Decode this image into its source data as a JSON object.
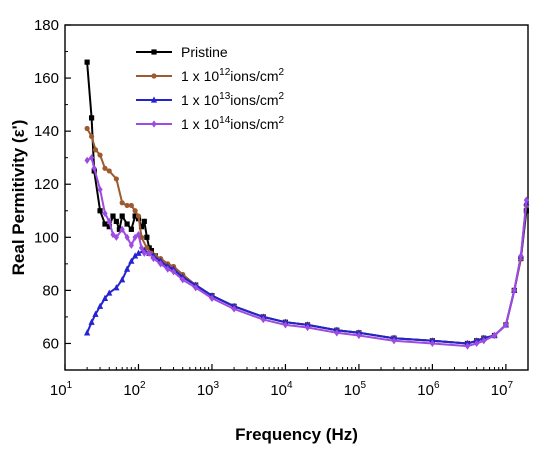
{
  "chart_data": {
    "type": "line",
    "xlabel": "Frequency (Hz)",
    "ylabel": "Real Permitivity (ε')",
    "x_scale": "log",
    "xlim": [
      10,
      20000000
    ],
    "ylim": [
      50,
      180
    ],
    "x_ticks": [
      {
        "value": 10,
        "mantissa": "10",
        "exp": "1"
      },
      {
        "value": 100,
        "mantissa": "10",
        "exp": "2"
      },
      {
        "value": 1000,
        "mantissa": "10",
        "exp": "3"
      },
      {
        "value": 10000,
        "mantissa": "10",
        "exp": "4"
      },
      {
        "value": 100000,
        "mantissa": "10",
        "exp": "5"
      },
      {
        "value": 1000000,
        "mantissa": "10",
        "exp": "6"
      },
      {
        "value": 10000000,
        "mantissa": "10",
        "exp": "7"
      }
    ],
    "y_ticks": [
      60,
      80,
      100,
      120,
      140,
      160,
      180
    ],
    "grid": false,
    "legend_position": "top-center",
    "series": [
      {
        "legend_parts": [
          "Pristine"
        ],
        "color": "#000000",
        "marker": "square",
        "points": [
          [
            20,
            166
          ],
          [
            23,
            145
          ],
          [
            25,
            125
          ],
          [
            30,
            110
          ],
          [
            35,
            105
          ],
          [
            40,
            104
          ],
          [
            45,
            108
          ],
          [
            50,
            106
          ],
          [
            55,
            103
          ],
          [
            60,
            108
          ],
          [
            70,
            105
          ],
          [
            80,
            103
          ],
          [
            90,
            108
          ],
          [
            100,
            107
          ],
          [
            110,
            104
          ],
          [
            120,
            106
          ],
          [
            130,
            100
          ],
          [
            140,
            96
          ],
          [
            150,
            95
          ],
          [
            170,
            93
          ],
          [
            200,
            91
          ],
          [
            250,
            89
          ],
          [
            300,
            88
          ],
          [
            400,
            85
          ],
          [
            600,
            82
          ],
          [
            1000,
            78
          ],
          [
            2000,
            74
          ],
          [
            5000,
            70
          ],
          [
            10000,
            68
          ],
          [
            20000,
            67
          ],
          [
            50000,
            65
          ],
          [
            100000,
            64
          ],
          [
            300000,
            62
          ],
          [
            1000000,
            61
          ],
          [
            3000000,
            60
          ],
          [
            4000000,
            61
          ],
          [
            5000000,
            62
          ],
          [
            7000000,
            63
          ],
          [
            10000000,
            67
          ],
          [
            13000000,
            80
          ],
          [
            16000000,
            92
          ],
          [
            19000000,
            110
          ]
        ]
      },
      {
        "legend_parts": [
          "1 x 10",
          "12",
          "ions/cm",
          "2"
        ],
        "color": "#9c5a2e",
        "marker": "circle",
        "points": [
          [
            20,
            141
          ],
          [
            23,
            138
          ],
          [
            26,
            133
          ],
          [
            30,
            131
          ],
          [
            35,
            126
          ],
          [
            40,
            125
          ],
          [
            50,
            122
          ],
          [
            60,
            113
          ],
          [
            70,
            112
          ],
          [
            80,
            112
          ],
          [
            90,
            110
          ],
          [
            100,
            108
          ],
          [
            110,
            100
          ],
          [
            130,
            96
          ],
          [
            150,
            94
          ],
          [
            170,
            93
          ],
          [
            200,
            92
          ],
          [
            250,
            90
          ],
          [
            300,
            89
          ],
          [
            400,
            86
          ],
          [
            600,
            82
          ],
          [
            1000,
            78
          ],
          [
            2000,
            74
          ],
          [
            5000,
            70
          ],
          [
            10000,
            68
          ],
          [
            20000,
            67
          ],
          [
            50000,
            65
          ],
          [
            100000,
            64
          ],
          [
            300000,
            62
          ],
          [
            1000000,
            61
          ],
          [
            3000000,
            60
          ],
          [
            4000000,
            61
          ],
          [
            5000000,
            62
          ],
          [
            7000000,
            63
          ],
          [
            10000000,
            67
          ],
          [
            13000000,
            80
          ],
          [
            16000000,
            92
          ],
          [
            19000000,
            112
          ]
        ]
      },
      {
        "legend_parts": [
          "1 x 10",
          "13",
          "ions/cm",
          "2"
        ],
        "color": "#2323d1",
        "marker": "triangle",
        "points": [
          [
            20,
            64
          ],
          [
            23,
            68
          ],
          [
            26,
            71
          ],
          [
            30,
            74
          ],
          [
            35,
            77
          ],
          [
            40,
            79
          ],
          [
            50,
            81
          ],
          [
            60,
            84
          ],
          [
            70,
            88
          ],
          [
            80,
            91
          ],
          [
            90,
            93
          ],
          [
            100,
            94
          ],
          [
            120,
            95
          ],
          [
            140,
            94
          ],
          [
            160,
            93
          ],
          [
            200,
            91
          ],
          [
            250,
            89
          ],
          [
            300,
            88
          ],
          [
            400,
            85
          ],
          [
            600,
            82
          ],
          [
            1000,
            78
          ],
          [
            2000,
            74
          ],
          [
            5000,
            70
          ],
          [
            10000,
            68
          ],
          [
            20000,
            67
          ],
          [
            50000,
            65
          ],
          [
            100000,
            64
          ],
          [
            300000,
            62
          ],
          [
            1000000,
            61
          ],
          [
            3000000,
            60
          ],
          [
            4000000,
            61
          ],
          [
            5000000,
            62
          ],
          [
            7000000,
            63
          ],
          [
            10000000,
            67
          ],
          [
            13000000,
            80
          ],
          [
            16000000,
            93
          ],
          [
            19000000,
            113
          ]
        ]
      },
      {
        "legend_parts": [
          "1 x 10",
          "14",
          "ions/cm",
          "2"
        ],
        "color": "#9d4be3",
        "marker": "diamond",
        "points": [
          [
            20,
            129
          ],
          [
            23,
            130
          ],
          [
            25,
            126
          ],
          [
            30,
            118
          ],
          [
            35,
            109
          ],
          [
            40,
            106
          ],
          [
            45,
            101
          ],
          [
            50,
            100
          ],
          [
            60,
            103
          ],
          [
            70,
            100
          ],
          [
            80,
            97
          ],
          [
            90,
            100
          ],
          [
            100,
            101
          ],
          [
            110,
            96
          ],
          [
            120,
            94
          ],
          [
            140,
            94
          ],
          [
            160,
            92
          ],
          [
            200,
            90
          ],
          [
            250,
            88
          ],
          [
            300,
            87
          ],
          [
            400,
            84
          ],
          [
            600,
            81
          ],
          [
            1000,
            77
          ],
          [
            2000,
            73
          ],
          [
            5000,
            69
          ],
          [
            10000,
            67
          ],
          [
            20000,
            66
          ],
          [
            50000,
            64
          ],
          [
            100000,
            63
          ],
          [
            300000,
            61
          ],
          [
            1000000,
            60
          ],
          [
            3000000,
            59
          ],
          [
            4000000,
            60
          ],
          [
            5000000,
            61
          ],
          [
            7000000,
            63
          ],
          [
            10000000,
            67
          ],
          [
            13000000,
            80
          ],
          [
            16000000,
            93
          ],
          [
            19000000,
            114
          ]
        ]
      }
    ]
  }
}
